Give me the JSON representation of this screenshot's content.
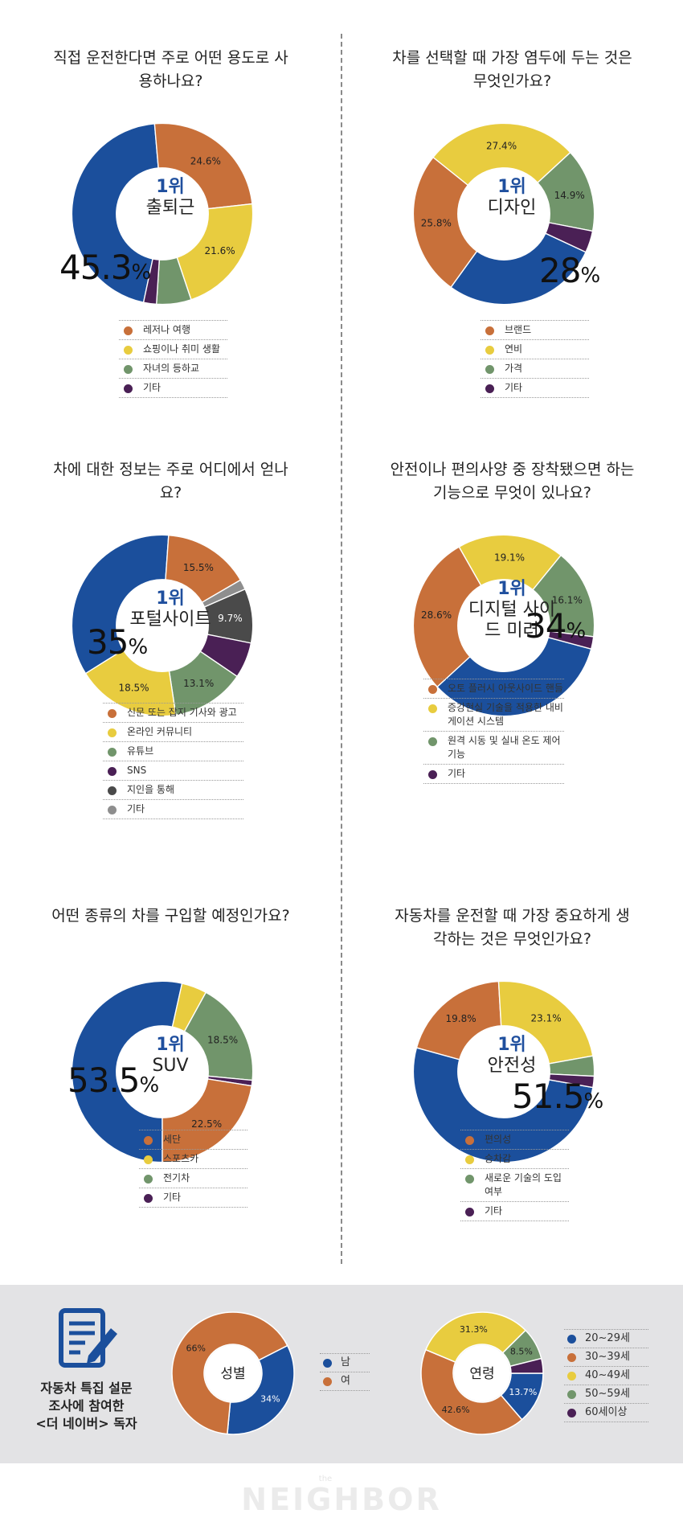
{
  "colors": {
    "blue": "#1b4f9c",
    "orange": "#c8703a",
    "yellow": "#e8cc3f",
    "green": "#71956b",
    "purple": "#4a2055",
    "darkgray": "#4a4a4a",
    "gray": "#8e8e8e",
    "title_blue": "#1f4f9e"
  },
  "chart_data": [
    {
      "type": "pie",
      "title": "직접 운전한다면 주로 어떤 용도로 사용하나요?",
      "center_rank": "1위",
      "center_label": "출퇴근",
      "big_value": "45.3",
      "big_unit": "%",
      "slices": [
        {
          "name": "출퇴근",
          "value": 45.3,
          "color": "blue",
          "label": ""
        },
        {
          "name": "레저나 여행",
          "value": 24.6,
          "color": "orange",
          "label": "24.6%"
        },
        {
          "name": "쇼핑이나 취미 생활",
          "value": 21.6,
          "color": "yellow",
          "label": "21.6%"
        },
        {
          "name": "자녀의 등하교",
          "value": 6.2,
          "color": "green",
          "label": ""
        },
        {
          "name": "기타",
          "value": 2.3,
          "color": "purple",
          "label": ""
        }
      ],
      "legend": [
        {
          "label": "레저나 여행",
          "color": "orange"
        },
        {
          "label": "쇼핑이나 취미 생활",
          "color": "yellow"
        },
        {
          "label": "자녀의 등하교",
          "color": "green"
        },
        {
          "label": "기타",
          "color": "purple"
        }
      ]
    },
    {
      "type": "pie",
      "title": "차를 선택할 때 가장 염두에 두는 것은 무엇인가요?",
      "center_rank": "1위",
      "center_label": "디자인",
      "big_value": "28",
      "big_unit": "%",
      "slices": [
        {
          "name": "디자인",
          "value": 28.0,
          "color": "blue",
          "label": ""
        },
        {
          "name": "브랜드",
          "value": 25.8,
          "color": "orange",
          "label": "25.8%"
        },
        {
          "name": "연비",
          "value": 27.4,
          "color": "yellow",
          "label": "27.4%"
        },
        {
          "name": "가격",
          "value": 14.9,
          "color": "green",
          "label": "14.9%"
        },
        {
          "name": "기타",
          "value": 3.9,
          "color": "purple",
          "label": ""
        }
      ],
      "legend": [
        {
          "label": "브랜드",
          "color": "orange"
        },
        {
          "label": "연비",
          "color": "yellow"
        },
        {
          "label": "가격",
          "color": "green"
        },
        {
          "label": "기타",
          "color": "purple"
        }
      ]
    },
    {
      "type": "pie",
      "title": "차에 대한 정보는 주로 어디에서 얻나요?",
      "center_rank": "1위",
      "center_label": "포털사이트",
      "big_value": "35",
      "big_unit": "%",
      "slices": [
        {
          "name": "포털사이트",
          "value": 35.0,
          "color": "blue",
          "label": ""
        },
        {
          "name": "신문 또는 잡지 기사와 광고",
          "value": 15.5,
          "color": "orange",
          "label": "15.5%"
        },
        {
          "name": "기타",
          "value": 1.8,
          "color": "gray",
          "label": ""
        },
        {
          "name": "지인을 통해",
          "value": 9.7,
          "color": "darkgray",
          "label": "9.7%"
        },
        {
          "name": "SNS",
          "value": 6.4,
          "color": "purple",
          "label": ""
        },
        {
          "name": "유튜브",
          "value": 13.1,
          "color": "green",
          "label": "13.1%"
        },
        {
          "name": "온라인 커뮤니티",
          "value": 18.5,
          "color": "yellow",
          "label": "18.5%"
        }
      ],
      "legend": [
        {
          "label": "신문 또는 잡지 기사와 광고",
          "color": "orange"
        },
        {
          "label": "온라인 커뮤니티",
          "color": "yellow"
        },
        {
          "label": "유튜브",
          "color": "green"
        },
        {
          "label": "SNS",
          "color": "purple"
        },
        {
          "label": "지인을 통해",
          "color": "darkgray"
        },
        {
          "label": "기타",
          "color": "gray"
        }
      ]
    },
    {
      "type": "pie",
      "title": "안전이나 편의사양 중 장착됐으면 하는 기능으로 무엇이 있나요?",
      "center_rank": "1위",
      "center_label": "디지털 사이드 미러",
      "big_value": "34",
      "big_unit": "%",
      "slices": [
        {
          "name": "디지털 사이드 미러",
          "value": 34.0,
          "color": "blue",
          "label": ""
        },
        {
          "name": "오토 플러시 아웃사이드 핸들",
          "value": 28.6,
          "color": "orange",
          "label": "28.6%"
        },
        {
          "name": "증강현실 기술을 적용한 내비게이션 시스템",
          "value": 19.1,
          "color": "yellow",
          "label": "19.1%"
        },
        {
          "name": "원격 시동 및 실내 온도 제어 기능",
          "value": 16.1,
          "color": "green",
          "label": "16.1%"
        },
        {
          "name": "기타",
          "value": 2.2,
          "color": "purple",
          "label": ""
        }
      ],
      "legend": [
        {
          "label": "오토 플러시 아웃사이드 핸들",
          "color": "orange"
        },
        {
          "label": "증강현실 기술을 적용한 내비게이션 시스템",
          "color": "yellow"
        },
        {
          "label": "원격 시동 및 실내 온도 제어 기능",
          "color": "green"
        },
        {
          "label": "기타",
          "color": "purple"
        }
      ]
    },
    {
      "type": "pie",
      "title": "어떤 종류의 차를 구입할 예정인가요?",
      "center_rank": "1위",
      "center_label": "SUV",
      "big_value": "53.5",
      "big_unit": "%",
      "slices": [
        {
          "name": "SUV",
          "value": 53.5,
          "color": "blue",
          "label": ""
        },
        {
          "name": "스포츠카",
          "value": 4.5,
          "color": "yellow",
          "label": ""
        },
        {
          "name": "전기차",
          "value": 18.5,
          "color": "green",
          "label": "18.5%"
        },
        {
          "name": "기타",
          "value": 1.0,
          "color": "purple",
          "label": ""
        },
        {
          "name": "세단",
          "value": 22.5,
          "color": "orange",
          "label": "22.5%"
        }
      ],
      "legend": [
        {
          "label": "세단",
          "color": "orange"
        },
        {
          "label": "스포츠카",
          "color": "yellow"
        },
        {
          "label": "전기차",
          "color": "green"
        },
        {
          "label": "기타",
          "color": "purple"
        }
      ]
    },
    {
      "type": "pie",
      "title": "자동차를 운전할 때 가장 중요하게 생각하는 것은 무엇인가요?",
      "center_rank": "1위",
      "center_label": "안전성",
      "big_value": "51.5",
      "big_unit": "%",
      "slices": [
        {
          "name": "안전성",
          "value": 51.5,
          "color": "blue",
          "label": ""
        },
        {
          "name": "편의성",
          "value": 19.8,
          "color": "orange",
          "label": "19.8%"
        },
        {
          "name": "승차감",
          "value": 23.1,
          "color": "yellow",
          "label": "23.1%"
        },
        {
          "name": "새로운 기술의 도입 여부",
          "value": 3.6,
          "color": "green",
          "label": ""
        },
        {
          "name": "기타",
          "value": 2.0,
          "color": "purple",
          "label": ""
        }
      ],
      "legend": [
        {
          "label": "편의성",
          "color": "orange"
        },
        {
          "label": "승차감",
          "color": "yellow"
        },
        {
          "label": "새로운 기술의 도입 여부",
          "color": "green"
        },
        {
          "label": "기타",
          "color": "purple"
        }
      ]
    },
    {
      "type": "pie",
      "center_label": "성별",
      "slices": [
        {
          "name": "남",
          "value": 34,
          "color": "blue",
          "label": "34%"
        },
        {
          "name": "여",
          "value": 66,
          "color": "orange",
          "label": "66%"
        }
      ],
      "legend": [
        {
          "label": "남",
          "color": "blue"
        },
        {
          "label": "여",
          "color": "orange"
        }
      ]
    },
    {
      "type": "pie",
      "center_label": "연령",
      "slices": [
        {
          "name": "20~29세",
          "value": 13.7,
          "color": "blue",
          "label": "13.7%"
        },
        {
          "name": "30~39세",
          "value": 42.6,
          "color": "orange",
          "label": "42.6%"
        },
        {
          "name": "40~49세",
          "value": 31.3,
          "color": "yellow",
          "label": "31.3%"
        },
        {
          "name": "50~59세",
          "value": 8.5,
          "color": "green",
          "label": "8.5%"
        },
        {
          "name": "60세이상",
          "value": 3.9,
          "color": "purple",
          "label": ""
        }
      ],
      "legend": [
        {
          "label": "20~29세",
          "color": "blue"
        },
        {
          "label": "30~39세",
          "color": "orange"
        },
        {
          "label": "40~49세",
          "color": "yellow"
        },
        {
          "label": "50~59세",
          "color": "green"
        },
        {
          "label": "60세이상",
          "color": "purple"
        }
      ]
    }
  ],
  "survey_caption": [
    "자동차 특집 설문",
    "조사에 참여한",
    "<더 네이버> 독자"
  ],
  "footer": {
    "the": "the",
    "logo": "NEIGHBOR"
  }
}
